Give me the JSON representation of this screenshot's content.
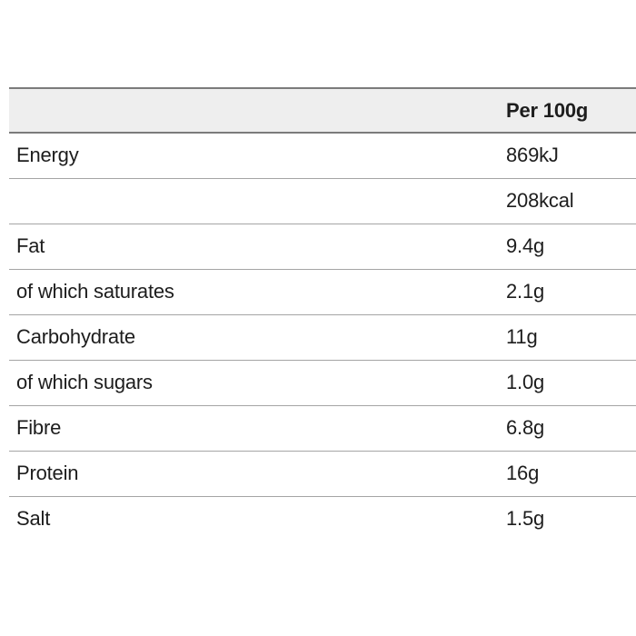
{
  "table": {
    "header": {
      "label": "",
      "value": "Per 100g"
    },
    "rows": [
      {
        "label": "Energy",
        "value": "869kJ"
      },
      {
        "label": "",
        "value": "208kcal"
      },
      {
        "label": "Fat",
        "value": "9.4g"
      },
      {
        "label": "of which saturates",
        "value": "2.1g"
      },
      {
        "label": "Carbohydrate",
        "value": "11g"
      },
      {
        "label": "of which sugars",
        "value": "1.0g"
      },
      {
        "label": "Fibre",
        "value": "6.8g"
      },
      {
        "label": "Protein",
        "value": "16g"
      },
      {
        "label": "Salt",
        "value": "1.5g"
      }
    ]
  },
  "colors": {
    "text-color": "#1d1d1d",
    "header-bg": "#eeeeee",
    "strong-border": "#7b7b7b",
    "row-border": "#a5a5a5",
    "page-bg": "#ffffff"
  }
}
